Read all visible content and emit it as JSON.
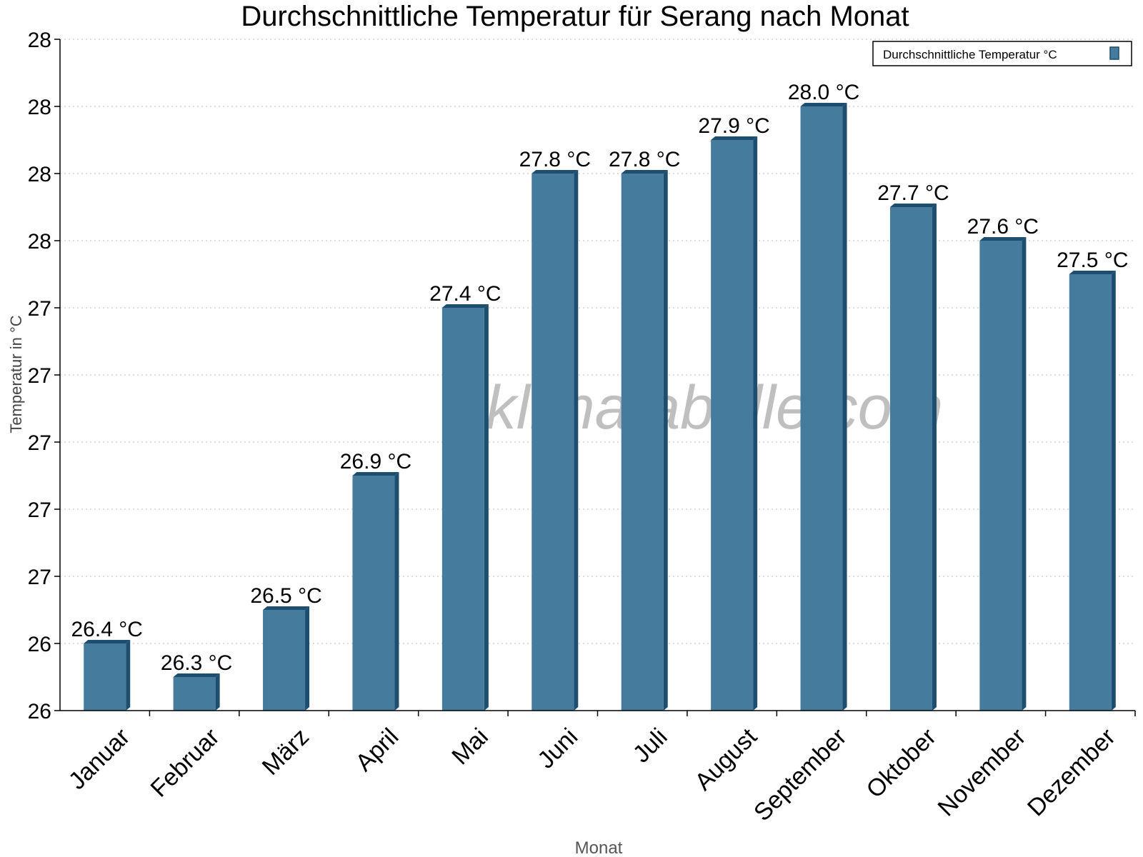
{
  "chart_data": {
    "type": "bar",
    "title": "Durchschnittliche Temperatur für Serang nach Monat",
    "xlabel": "Monat",
    "ylabel": "Temperatur in °C",
    "categories": [
      "Januar",
      "Februar",
      "März",
      "April",
      "Mai",
      "Juni",
      "Juli",
      "August",
      "September",
      "Oktober",
      "November",
      "Dezember"
    ],
    "series": [
      {
        "name": "Durchschnittliche Temperatur °C",
        "values": [
          26.4,
          26.3,
          26.5,
          26.9,
          27.4,
          27.8,
          27.8,
          27.9,
          28.0,
          27.7,
          27.6,
          27.5
        ],
        "color": "#457b9d",
        "dark_color": "#1d4e6f"
      }
    ],
    "data_labels": [
      "26.4 °C",
      "26.3 °C",
      "26.5 °C",
      "26.9 °C",
      "27.4 °C",
      "27.8 °C",
      "27.8 °C",
      "27.9 °C",
      "28.0 °C",
      "27.7 °C",
      "27.6 °C",
      "27.5 °C"
    ],
    "ylim": [
      26.2,
      28.2
    ],
    "yticks": [
      26.2,
      26.4,
      26.6,
      26.8,
      27.0,
      27.2,
      27.4,
      27.6,
      27.8,
      28.0,
      28.2
    ],
    "ytick_labels": [
      "26",
      "26",
      "27",
      "27",
      "27",
      "27",
      "27",
      "28",
      "28",
      "28",
      "28"
    ],
    "grid": true,
    "legend_position": "top-right",
    "watermark": "klimatabelle.com"
  }
}
